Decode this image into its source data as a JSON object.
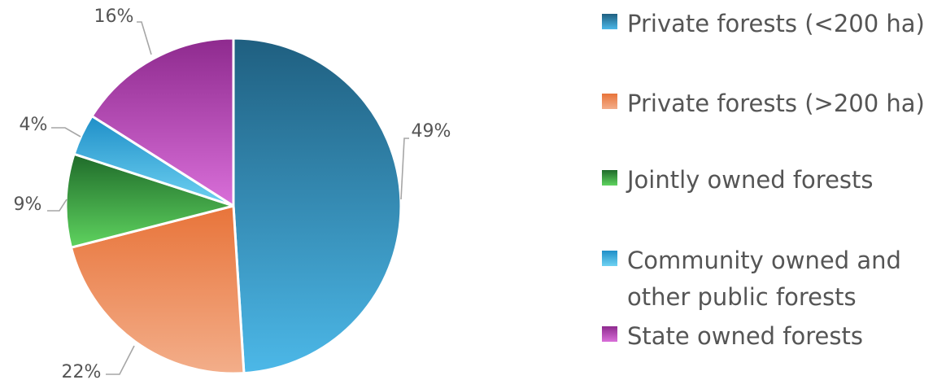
{
  "chart_data": {
    "type": "pie",
    "legend_position": "right",
    "slices": [
      {
        "label": "Private forests (<200 ha)",
        "value": 49,
        "display": "49%",
        "color_top": "#1f5f80",
        "color_bottom": "#4cb8e8"
      },
      {
        "label": "Private forests (>200 ha)",
        "value": 22,
        "display": "22%",
        "color_top": "#e8743a",
        "color_bottom": "#f3ae8a"
      },
      {
        "label": "Jointly owned forests",
        "value": 9,
        "display": "9%",
        "color_top": "#1f6b2a",
        "color_bottom": "#5fd35f"
      },
      {
        "label": "Community owned and\nother public forests",
        "value": 4,
        "display": "4%",
        "color_top": "#1f8fc8",
        "color_bottom": "#6fd2f2"
      },
      {
        "label": "State owned forests",
        "value": 16,
        "display": "16%",
        "color_top": "#8e2a8e",
        "color_bottom": "#d96fd9"
      }
    ]
  }
}
